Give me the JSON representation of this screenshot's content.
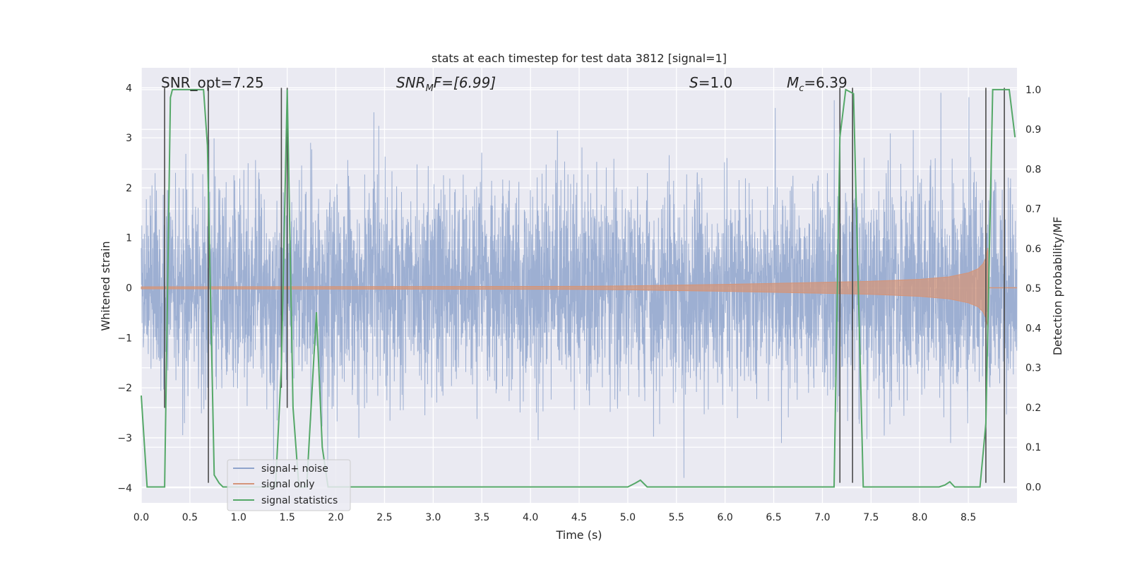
{
  "chart_data": {
    "type": "line",
    "title": "stats at each timestep for test data 3812 [signal=1]",
    "xlabel": "Time (s)",
    "ylabel": "Whitened strain",
    "ylabel_right": "Detection probability/MF",
    "xlim": [
      0.0,
      9.0
    ],
    "ylim": [
      -4.3,
      4.4
    ],
    "ylim_right": [
      -0.04,
      1.055
    ],
    "x_ticks": [
      "0.0",
      "0.5",
      "1.0",
      "1.5",
      "2.0",
      "2.5",
      "3.0",
      "3.5",
      "4.0",
      "4.5",
      "5.0",
      "5.5",
      "6.0",
      "6.5",
      "7.0",
      "7.5",
      "8.0",
      "8.5"
    ],
    "y_ticks": [
      "4",
      "3",
      "2",
      "1",
      "0",
      "−1",
      "−2",
      "−3",
      "−4"
    ],
    "y_ticks_right": [
      "1.0",
      "0.9",
      "0.8",
      "0.7",
      "0.6",
      "0.5",
      "0.4",
      "0.3",
      "0.2",
      "0.1",
      "0.0"
    ],
    "grid": true,
    "legend_position": "lower-left",
    "annotations": {
      "snr_opt": "SNR_opt=7.25",
      "snr_mf_var": "SNR",
      "snr_mf_sub": "M",
      "snr_mf_suffix": "F=[6.99]",
      "s_var": "S",
      "s_value": "=1.0",
      "mc_var": "M",
      "mc_sub": "c",
      "mc_value": "=6.39"
    },
    "series": [
      {
        "name": "signal+ noise",
        "color": "#8fa4cc",
        "axis": "left",
        "description_stats": {
          "mean": 0.0,
          "std": 1.0,
          "min": -3.8,
          "max": 3.9
        }
      },
      {
        "name": "signal only",
        "color": "#d4957a",
        "axis": "left",
        "envelope_t": [
          0.0,
          4.5,
          5.0,
          6.0,
          7.0,
          7.5,
          8.0,
          8.3,
          8.5,
          8.6,
          8.65,
          8.68,
          8.7
        ],
        "envelope_amp": [
          0.02,
          0.03,
          0.04,
          0.07,
          0.11,
          0.13,
          0.17,
          0.22,
          0.3,
          0.38,
          0.48,
          0.6,
          0.8
        ]
      },
      {
        "name": "signal statistics",
        "color": "#55a868",
        "axis": "right",
        "x": [
          0.0,
          0.06,
          0.12,
          0.24,
          0.3,
          0.32,
          0.45,
          0.64,
          0.68,
          0.75,
          0.8,
          0.84,
          0.9,
          1.0,
          1.2,
          1.38,
          1.44,
          1.5,
          1.56,
          1.62,
          1.7,
          1.8,
          1.86,
          1.92,
          2.0,
          2.5,
          3.0,
          4.0,
          5.0,
          5.08,
          5.13,
          5.2,
          5.5,
          6.0,
          7.0,
          7.12,
          7.18,
          7.24,
          7.32,
          7.42,
          7.5,
          8.0,
          8.2,
          8.26,
          8.31,
          8.36,
          8.5,
          8.62,
          8.68,
          8.75,
          8.92,
          8.98
        ],
        "y": [
          0.23,
          0.0,
          0.0,
          0.0,
          0.98,
          1.0,
          1.0,
          1.0,
          0.86,
          0.03,
          0.01,
          0.0,
          0.0,
          0.0,
          0.0,
          0.0,
          0.3,
          1.0,
          0.2,
          0.0,
          0.0,
          0.44,
          0.1,
          0.0,
          0.0,
          0.0,
          0.0,
          0.0,
          0.0,
          0.01,
          0.017,
          0.0,
          0.0,
          0.0,
          0.0,
          0.0,
          0.88,
          1.0,
          0.99,
          0.0,
          0.0,
          0.0,
          0.0,
          0.005,
          0.013,
          0.0,
          0.0,
          0.0,
          0.16,
          1.0,
          1.0,
          0.88
        ]
      }
    ],
    "vertical_markers": [
      {
        "x": 0.24,
        "y_from": -2.4,
        "y_to": 4.0
      },
      {
        "x": 0.69,
        "y_from": -3.9,
        "y_to": 4.0
      },
      {
        "x": 1.44,
        "y_from": -2.0,
        "y_to": 4.0
      },
      {
        "x": 1.5,
        "y_from": -2.4,
        "y_to": 4.0
      },
      {
        "x": 7.18,
        "y_from": -3.9,
        "y_to": 4.0
      },
      {
        "x": 7.31,
        "y_from": -3.9,
        "y_to": 4.0
      },
      {
        "x": 8.68,
        "y_from": -3.9,
        "y_to": 4.0
      },
      {
        "x": 8.87,
        "y_from": -3.9,
        "y_to": 4.0
      }
    ],
    "legend": [
      {
        "label": "signal+ noise",
        "color": "#8fa4cc"
      },
      {
        "label": "signal only",
        "color": "#d4957a"
      },
      {
        "label": "signal statistics",
        "color": "#55a868"
      }
    ]
  }
}
